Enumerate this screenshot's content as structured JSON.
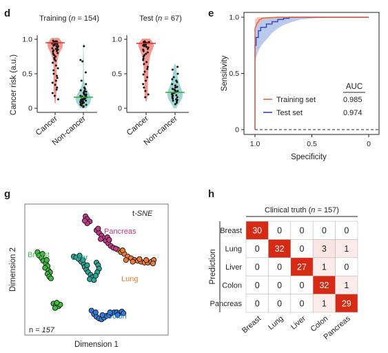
{
  "panels": {
    "d": "d",
    "e": "e",
    "g": "g",
    "h": "h"
  },
  "colors": {
    "cancer_violin": "#f4827a",
    "noncancer_violin": "#8ccfca",
    "cancer_median": "#e0302a",
    "noncancer_median": "#2ea83b",
    "training_line": "#e8603c",
    "test_line": "#2f45c8",
    "test_band": "#9bb3e6",
    "training_band": "#f7b6a6",
    "breast": "#3cbf3c",
    "liver": "#27a99a",
    "colon": "#2d7de0",
    "lung": "#f07a30",
    "pancreas": "#c5378c",
    "heat_high": "#d62a14"
  },
  "chart_data": [
    {
      "type": "violin",
      "panel": "d",
      "title": "Training (n = 154)",
      "title_parts": [
        "Training (",
        "n",
        " = 154)"
      ],
      "ylabel": "Cancer risk (a.u.)",
      "ylim": [
        0,
        1
      ],
      "yticks": [
        "0",
        "0.5",
        "1.0"
      ],
      "ytick_values": [
        0,
        0.5,
        1.0
      ],
      "categories": [
        "Cancer",
        "Non-cancer"
      ],
      "medians": [
        0.95,
        0.16
      ],
      "points": {
        "Cancer": [
          0.98,
          0.97,
          0.97,
          0.96,
          0.96,
          0.96,
          0.95,
          0.95,
          0.95,
          0.95,
          0.94,
          0.94,
          0.94,
          0.93,
          0.93,
          0.92,
          0.92,
          0.91,
          0.9,
          0.9,
          0.89,
          0.88,
          0.87,
          0.86,
          0.85,
          0.84,
          0.83,
          0.82,
          0.8,
          0.79,
          0.77,
          0.75,
          0.73,
          0.71,
          0.69,
          0.66,
          0.62,
          0.58,
          0.55,
          0.5,
          0.47,
          0.44,
          0.4,
          0.37,
          0.34,
          0.3,
          0.27,
          0.22,
          0.18,
          0.13
        ],
        "Non-cancer": [
          0.9,
          0.7,
          0.68,
          0.52,
          0.4,
          0.35,
          0.3,
          0.28,
          0.26,
          0.25,
          0.24,
          0.23,
          0.22,
          0.21,
          0.2,
          0.2,
          0.19,
          0.18,
          0.18,
          0.17,
          0.17,
          0.16,
          0.16,
          0.15,
          0.15,
          0.14,
          0.14,
          0.13,
          0.13,
          0.12,
          0.12,
          0.11,
          0.11,
          0.1,
          0.1,
          0.09,
          0.09,
          0.08,
          0.08,
          0.07,
          0.07,
          0.06,
          0.06,
          0.05,
          0.05,
          0.04,
          0.03,
          0.02
        ]
      }
    },
    {
      "type": "violin",
      "panel": "d",
      "title": "Test (n = 67)",
      "title_parts": [
        "Test (",
        "n",
        " = 67)"
      ],
      "ylim": [
        0,
        1
      ],
      "yticks": [
        "0",
        "0.5",
        "1.0"
      ],
      "ytick_values": [
        0,
        0.5,
        1.0
      ],
      "categories": [
        "Cancer",
        "Non-cancer"
      ],
      "medians": [
        0.94,
        0.23
      ],
      "points": {
        "Cancer": [
          0.97,
          0.96,
          0.96,
          0.95,
          0.95,
          0.94,
          0.94,
          0.93,
          0.93,
          0.92,
          0.91,
          0.9,
          0.89,
          0.88,
          0.86,
          0.85,
          0.83,
          0.81,
          0.79,
          0.77,
          0.75,
          0.72,
          0.7,
          0.67,
          0.64,
          0.6,
          0.57,
          0.53,
          0.49,
          0.45,
          0.4,
          0.35,
          0.3,
          0.25,
          0.2,
          0.16
        ],
        "Non-cancer": [
          0.6,
          0.56,
          0.5,
          0.45,
          0.42,
          0.4,
          0.38,
          0.35,
          0.33,
          0.31,
          0.3,
          0.28,
          0.27,
          0.26,
          0.25,
          0.24,
          0.23,
          0.22,
          0.21,
          0.2,
          0.19,
          0.18,
          0.17,
          0.16,
          0.15,
          0.14,
          0.13,
          0.12,
          0.11,
          0.1,
          0.08,
          0.06
        ]
      }
    },
    {
      "type": "line",
      "panel": "e",
      "xlabel": "Specificity",
      "ylabel": "Sensitivity",
      "xlim": [
        1.0,
        0
      ],
      "ylim": [
        0,
        1.0
      ],
      "xticks": [
        "1.0",
        "0.5",
        "0"
      ],
      "xtick_values": [
        1.0,
        0.5,
        0
      ],
      "yticks": [
        "0",
        "0.5",
        "1.0"
      ],
      "ytick_values": [
        0,
        0.5,
        1.0
      ],
      "legend_header": "AUC",
      "series": [
        {
          "name": "Training set",
          "auc": "0.985",
          "x": [
            1.0,
            1.0,
            0.99,
            0.98,
            0.97,
            0.96,
            0.95,
            0.94,
            0.9,
            0.8,
            0.6,
            0.3,
            0
          ],
          "y": [
            0,
            0.9,
            0.92,
            0.95,
            0.96,
            0.98,
            0.98,
            0.99,
            0.995,
            1.0,
            1.0,
            1.0,
            1.0
          ],
          "band_x": [
            1.0,
            0.99,
            0.98,
            0.96,
            0.94,
            0.9,
            0.85,
            0.8,
            0.7,
            0.6,
            0.3,
            0
          ],
          "band_lo": [
            0.86,
            0.89,
            0.93,
            0.95,
            0.97,
            0.98,
            0.99,
            0.99,
            1.0,
            1.0,
            1.0,
            1.0
          ],
          "band_hi": [
            0.98,
            0.99,
            1.0,
            1.0,
            1.0,
            1.0,
            1.0,
            1.0,
            1.0,
            1.0,
            1.0,
            1.0
          ]
        },
        {
          "name": "Test set",
          "auc": "0.974",
          "x": [
            1.0,
            1.0,
            0.99,
            0.99,
            0.97,
            0.97,
            0.95,
            0.95,
            0.9,
            0.9,
            0.85,
            0.85,
            0.8,
            0.8,
            0.75,
            0.75,
            0.7,
            0.7,
            0.4,
            0
          ],
          "y": [
            0,
            0.75,
            0.75,
            0.82,
            0.82,
            0.88,
            0.88,
            0.91,
            0.91,
            0.94,
            0.94,
            0.96,
            0.96,
            0.98,
            0.98,
            0.99,
            0.99,
            1.0,
            1.0,
            1.0
          ],
          "band_x": [
            1.0,
            0.99,
            0.97,
            0.95,
            0.92,
            0.9,
            0.85,
            0.8,
            0.75,
            0.7,
            0.6,
            0.5,
            0.3,
            0
          ],
          "band_lo": [
            0.62,
            0.64,
            0.7,
            0.74,
            0.78,
            0.8,
            0.86,
            0.9,
            0.93,
            0.95,
            0.98,
            0.99,
            1.0,
            1.0
          ],
          "band_hi": [
            0.9,
            0.93,
            0.96,
            0.98,
            0.99,
            0.995,
            1.0,
            1.0,
            1.0,
            1.0,
            1.0,
            1.0,
            1.0,
            1.0
          ]
        }
      ]
    },
    {
      "type": "scatter",
      "panel": "g",
      "title": "t-SNE",
      "title_parts": [
        "t",
        "-SNE"
      ],
      "xlabel": "Dimension 1",
      "ylabel": "Dimension 2",
      "n_label_parts": [
        "n",
        " = 157"
      ],
      "series": [
        {
          "name": "Breast",
          "points": [
            [
              -7.5,
              1.5
            ],
            [
              -7.3,
              1.1
            ],
            [
              -7.0,
              0.8
            ],
            [
              -6.8,
              0.5
            ],
            [
              -6.5,
              0.2
            ],
            [
              -6.3,
              -0.1
            ],
            [
              -6.6,
              -0.3
            ],
            [
              -6.2,
              -0.6
            ],
            [
              -6.0,
              -0.8
            ],
            [
              -6.3,
              -1.0
            ],
            [
              -6.1,
              -1.3
            ],
            [
              -5.9,
              -1.5
            ],
            [
              -6.4,
              0.6
            ],
            [
              -6.9,
              1.3
            ],
            [
              -5.6,
              -4.4
            ],
            [
              -5.3,
              -4.6
            ],
            [
              -5.0,
              -4.7
            ],
            [
              -5.4,
              -4.9
            ],
            [
              -4.8,
              -4.5
            ],
            [
              -5.2,
              -4.3
            ]
          ]
        },
        {
          "name": "Liver",
          "points": [
            [
              -3.2,
              1.0
            ],
            [
              -2.9,
              0.9
            ],
            [
              -2.6,
              0.7
            ],
            [
              -2.3,
              0.4
            ],
            [
              -2.0,
              0.1
            ],
            [
              -1.9,
              -0.2
            ],
            [
              -1.7,
              -0.5
            ],
            [
              -1.5,
              -0.8
            ],
            [
              -1.2,
              -1.1
            ],
            [
              -1.0,
              -1.4
            ],
            [
              -1.3,
              -1.6
            ],
            [
              -0.8,
              -1.7
            ],
            [
              -2.5,
              1.1
            ],
            [
              -2.1,
              0.6
            ],
            [
              -1.6,
              0.0
            ],
            [
              -0.5,
              0.3
            ],
            [
              -0.3,
              0.0
            ],
            [
              -0.2,
              -0.4
            ],
            [
              -0.4,
              -0.8
            ],
            [
              -0.6,
              -1.2
            ]
          ]
        },
        {
          "name": "Colon",
          "points": [
            [
              -1.1,
              -5.2
            ],
            [
              -0.8,
              -5.6
            ],
            [
              -0.5,
              -5.9
            ],
            [
              -0.2,
              -6.1
            ],
            [
              0.1,
              -6.2
            ],
            [
              0.4,
              -6.0
            ],
            [
              0.7,
              -5.8
            ],
            [
              1.0,
              -5.7
            ],
            [
              1.3,
              -5.5
            ],
            [
              1.6,
              -5.4
            ],
            [
              1.9,
              -5.4
            ],
            [
              2.2,
              -5.5
            ],
            [
              2.5,
              -5.3
            ],
            [
              2.7,
              -5.5
            ],
            [
              0.2,
              -5.7
            ],
            [
              -0.6,
              -5.4
            ],
            [
              1.1,
              -5.4
            ],
            [
              2.0,
              -5.7
            ]
          ]
        },
        {
          "name": "Lung",
          "points": [
            [
              2.0,
              1.8
            ],
            [
              2.4,
              1.5
            ],
            [
              2.8,
              1.3
            ],
            [
              3.2,
              1.0
            ],
            [
              3.6,
              0.8
            ],
            [
              4.0,
              0.6
            ],
            [
              4.4,
              0.5
            ],
            [
              4.8,
              0.4
            ],
            [
              5.2,
              0.3
            ],
            [
              5.6,
              0.3
            ],
            [
              6.0,
              0.4
            ],
            [
              6.3,
              0.6
            ],
            [
              3.0,
              0.6
            ],
            [
              3.8,
              0.4
            ],
            [
              4.6,
              0.7
            ],
            [
              5.4,
              0.6
            ],
            [
              2.6,
              1.7
            ],
            [
              6.2,
              0.2
            ]
          ]
        },
        {
          "name": "Pancreas",
          "points": [
            [
              -1.8,
              5.6
            ],
            [
              -1.6,
              5.3
            ],
            [
              -1.3,
              5.0
            ],
            [
              -1.6,
              4.8
            ],
            [
              -1.9,
              5.1
            ],
            [
              -0.5,
              4.0
            ],
            [
              -0.2,
              3.7
            ],
            [
              0.1,
              3.4
            ],
            [
              0.4,
              3.1
            ],
            [
              0.6,
              2.8
            ],
            [
              0.9,
              2.5
            ],
            [
              1.2,
              2.2
            ],
            [
              1.5,
              2.0
            ],
            [
              1.8,
              1.9
            ],
            [
              0.0,
              3.0
            ],
            [
              0.8,
              3.2
            ],
            [
              -0.3,
              4.2
            ],
            [
              1.0,
              2.9
            ]
          ]
        }
      ],
      "labels": [
        "Pancreas",
        "Breast",
        "Liver",
        "Lung",
        "Colon"
      ]
    },
    {
      "type": "heatmap",
      "panel": "h",
      "title": "Clinical truth (n = 157)",
      "title_parts": [
        "Clinical truth (",
        "n",
        " = 157)"
      ],
      "ylabel": "Prediction",
      "rows": [
        "Breast",
        "Lung",
        "Liver",
        "Colon",
        "Pancreas"
      ],
      "cols": [
        "Breast",
        "Lung",
        "Liver",
        "Colon",
        "Pancreas"
      ],
      "values": [
        [
          30,
          0,
          0,
          0,
          0
        ],
        [
          0,
          32,
          0,
          3,
          1
        ],
        [
          0,
          0,
          27,
          1,
          0
        ],
        [
          0,
          0,
          0,
          32,
          1
        ],
        [
          0,
          0,
          0,
          1,
          29
        ]
      ]
    }
  ]
}
